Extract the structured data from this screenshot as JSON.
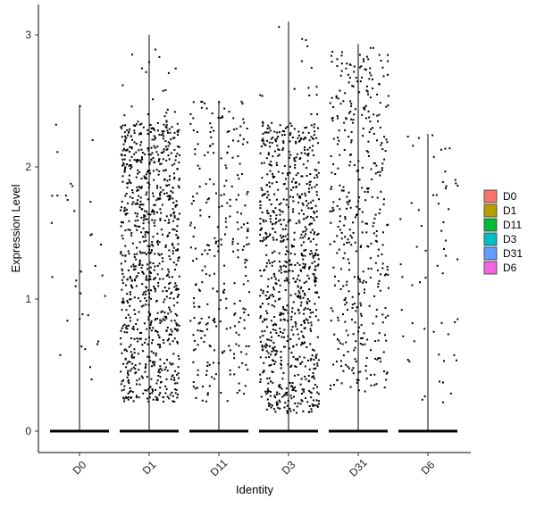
{
  "chart_data": {
    "type": "scatter",
    "subtype": "violin-jitter",
    "title": "",
    "xlabel": "Identity",
    "ylabel": "Expression Level",
    "ylim": [
      -0.18,
      3.1
    ],
    "yticks": [
      "0",
      "1",
      "2",
      "3"
    ],
    "categories": [
      "D0",
      "D1",
      "D11",
      "D3",
      "D31",
      "D6"
    ],
    "grid": false,
    "legend_position": "right",
    "legend": [
      {
        "label": "D0",
        "color": "#F8766D"
      },
      {
        "label": "D1",
        "color": "#B79F00"
      },
      {
        "label": "D11",
        "color": "#00BA38"
      },
      {
        "label": "D3",
        "color": "#00BFC4"
      },
      {
        "label": "D31",
        "color": "#619CFF"
      },
      {
        "label": "D6",
        "color": "#F564E3"
      }
    ],
    "groups": [
      {
        "name": "D0",
        "max": 2.47,
        "nonzero_points": 35,
        "nonzero_range": [
          0.18,
          2.47
        ]
      },
      {
        "name": "D1",
        "max": 3.0,
        "nonzero_points": 900,
        "nonzero_range": [
          0.22,
          3.0
        ],
        "dense_range": [
          0.22,
          2.35
        ]
      },
      {
        "name": "D11",
        "max": 2.5,
        "nonzero_points": 280,
        "nonzero_range": [
          0.22,
          2.5
        ]
      },
      {
        "name": "D3",
        "max": 3.1,
        "nonzero_points": 850,
        "nonzero_range": [
          0.13,
          3.1
        ],
        "dense_range": [
          0.13,
          2.35
        ]
      },
      {
        "name": "D31",
        "max": 2.93,
        "nonzero_points": 420,
        "nonzero_range": [
          0.3,
          2.93
        ]
      },
      {
        "name": "D6",
        "max": 2.25,
        "nonzero_points": 60,
        "nonzero_range": [
          0.18,
          2.25
        ]
      }
    ],
    "zero_value": 0
  }
}
